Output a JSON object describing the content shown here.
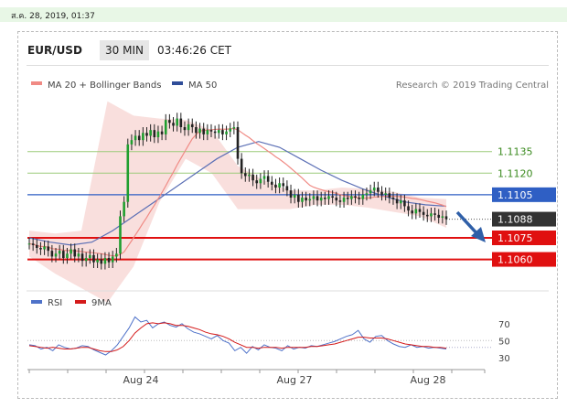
{
  "date_stamp": "ส.ค. 28, 2019, 01:37",
  "header": {
    "pair": "EUR/USD",
    "timeframe": "30 MIN",
    "time": "03:46:26 CET"
  },
  "legend": {
    "ma20": "MA 20 + Bollinger Bands",
    "ma50": "MA 50"
  },
  "credit": "Research © 2019 Trading Central",
  "colors": {
    "ma20": "#f08a84",
    "ma50": "#5b6fb5",
    "rsi": "#4f72c9",
    "rsi_ma": "#d41a1a",
    "level_green": "#9ccb7a",
    "level_blue": "#2f5fc4",
    "level_red": "#e01010",
    "last": "#333333"
  },
  "chart_data": [
    {
      "type": "candlestick",
      "levels": [
        {
          "label": "1.1135",
          "value": 1.1135,
          "style": "green"
        },
        {
          "label": "1.1120",
          "value": 1.112,
          "style": "green"
        },
        {
          "label": "1.1105",
          "value": 1.1105,
          "style": "blue"
        },
        {
          "label": "1.1088",
          "value": 1.1088,
          "style": "last"
        },
        {
          "label": "1.1075",
          "value": 1.1075,
          "style": "red"
        },
        {
          "label": "1.1060",
          "value": 1.106,
          "style": "red"
        }
      ],
      "close_path": [
        1.1071,
        1.107,
        1.1068,
        1.1067,
        1.1069,
        1.1066,
        1.1062,
        1.1064,
        1.1066,
        1.1061,
        1.1064,
        1.1067,
        1.1062,
        1.1064,
        1.1059,
        1.1061,
        1.1063,
        1.1058,
        1.106,
        1.1057,
        1.1061,
        1.1058,
        1.1062,
        1.1064,
        1.109,
        1.11,
        1.114,
        1.1143,
        1.1146,
        1.1143,
        1.1148,
        1.1146,
        1.115,
        1.1145,
        1.1149,
        1.1147,
        1.1157,
        1.1155,
        1.1153,
        1.1158,
        1.1152,
        1.115,
        1.1154,
        1.1152,
        1.1148,
        1.1151,
        1.1147,
        1.115,
        1.1149,
        1.1148,
        1.115,
        1.1147,
        1.1149,
        1.1151,
        1.1152,
        1.113,
        1.112,
        1.1118,
        1.1119,
        1.1115,
        1.1113,
        1.1116,
        1.1118,
        1.1114,
        1.1112,
        1.111,
        1.1113,
        1.1111,
        1.1108,
        1.1103,
        1.1105,
        1.11,
        1.1103,
        1.1101,
        1.1102,
        1.1104,
        1.1101,
        1.1103,
        1.1102,
        1.1104,
        1.1103,
        1.1101,
        1.11,
        1.1103,
        1.1102,
        1.1104,
        1.1103,
        1.1102,
        1.1105,
        1.1106,
        1.1108,
        1.111,
        1.1107,
        1.1105,
        1.1106,
        1.1103,
        1.1102,
        1.1099,
        1.1101,
        1.1097,
        1.1094,
        1.1092,
        1.1095,
        1.1093,
        1.1091,
        1.109,
        1.1092,
        1.1091,
        1.1089,
        1.109,
        1.1088
      ],
      "ma50": [
        1.1075,
        1.1072,
        1.107,
        1.1072,
        1.108,
        1.109,
        1.11,
        1.111,
        1.112,
        1.113,
        1.1138,
        1.1142,
        1.1138,
        1.113,
        1.1122,
        1.1115,
        1.1109,
        1.1104,
        1.11,
        1.1098,
        1.1097
      ],
      "bollinger": {
        "upper": [
          1.108,
          1.1078,
          1.108,
          1.117,
          1.116,
          1.1158,
          1.1157,
          1.115,
          1.1125,
          1.1115,
          1.1108,
          1.1108,
          1.111,
          1.1109,
          1.1107,
          1.1103,
          1.1102
        ],
        "lower": [
          1.1062,
          1.105,
          1.104,
          1.103,
          1.1055,
          1.11,
          1.113,
          1.112,
          1.1095,
          1.1095,
          1.1095,
          1.1098,
          1.1098,
          1.1096,
          1.1093,
          1.109,
          1.1082
        ]
      },
      "ylim": [
        1.104,
        1.1166
      ]
    },
    {
      "type": "line",
      "legend": [
        "RSI",
        "9MA"
      ],
      "y_ticks": [
        "70",
        "50",
        "30"
      ],
      "rsi": [
        45,
        44,
        40,
        42,
        38,
        45,
        42,
        40,
        41,
        44,
        43,
        39,
        36,
        33,
        38,
        45,
        55,
        65,
        78,
        72,
        74,
        65,
        70,
        72,
        68,
        66,
        70,
        64,
        60,
        58,
        55,
        52,
        56,
        50,
        47,
        38,
        42,
        35,
        43,
        39,
        45,
        42,
        41,
        38,
        44,
        40,
        42,
        41,
        44,
        43,
        45,
        47,
        49,
        52,
        55,
        57,
        62,
        52,
        48,
        55,
        56,
        50,
        46,
        43,
        42,
        45,
        42,
        43,
        41,
        42,
        41,
        40
      ],
      "rsi_ma": [
        44,
        43,
        42,
        41,
        42,
        41,
        40,
        40,
        41,
        42,
        42,
        40,
        38,
        37,
        37,
        39,
        43,
        50,
        59,
        65,
        70,
        71,
        70,
        71,
        70,
        68,
        68,
        67,
        65,
        63,
        60,
        58,
        57,
        55,
        52,
        48,
        45,
        42,
        42,
        41,
        42,
        42,
        42,
        41,
        42,
        42,
        42,
        42,
        43,
        43,
        44,
        45,
        46,
        48,
        50,
        52,
        54,
        54,
        53,
        53,
        53,
        52,
        50,
        48,
        46,
        45,
        44,
        43,
        43,
        42,
        42,
        41
      ],
      "ylim": [
        20,
        85
      ],
      "x_ticks": [
        "Aug 24",
        "Aug 27",
        "Aug 28"
      ]
    }
  ]
}
